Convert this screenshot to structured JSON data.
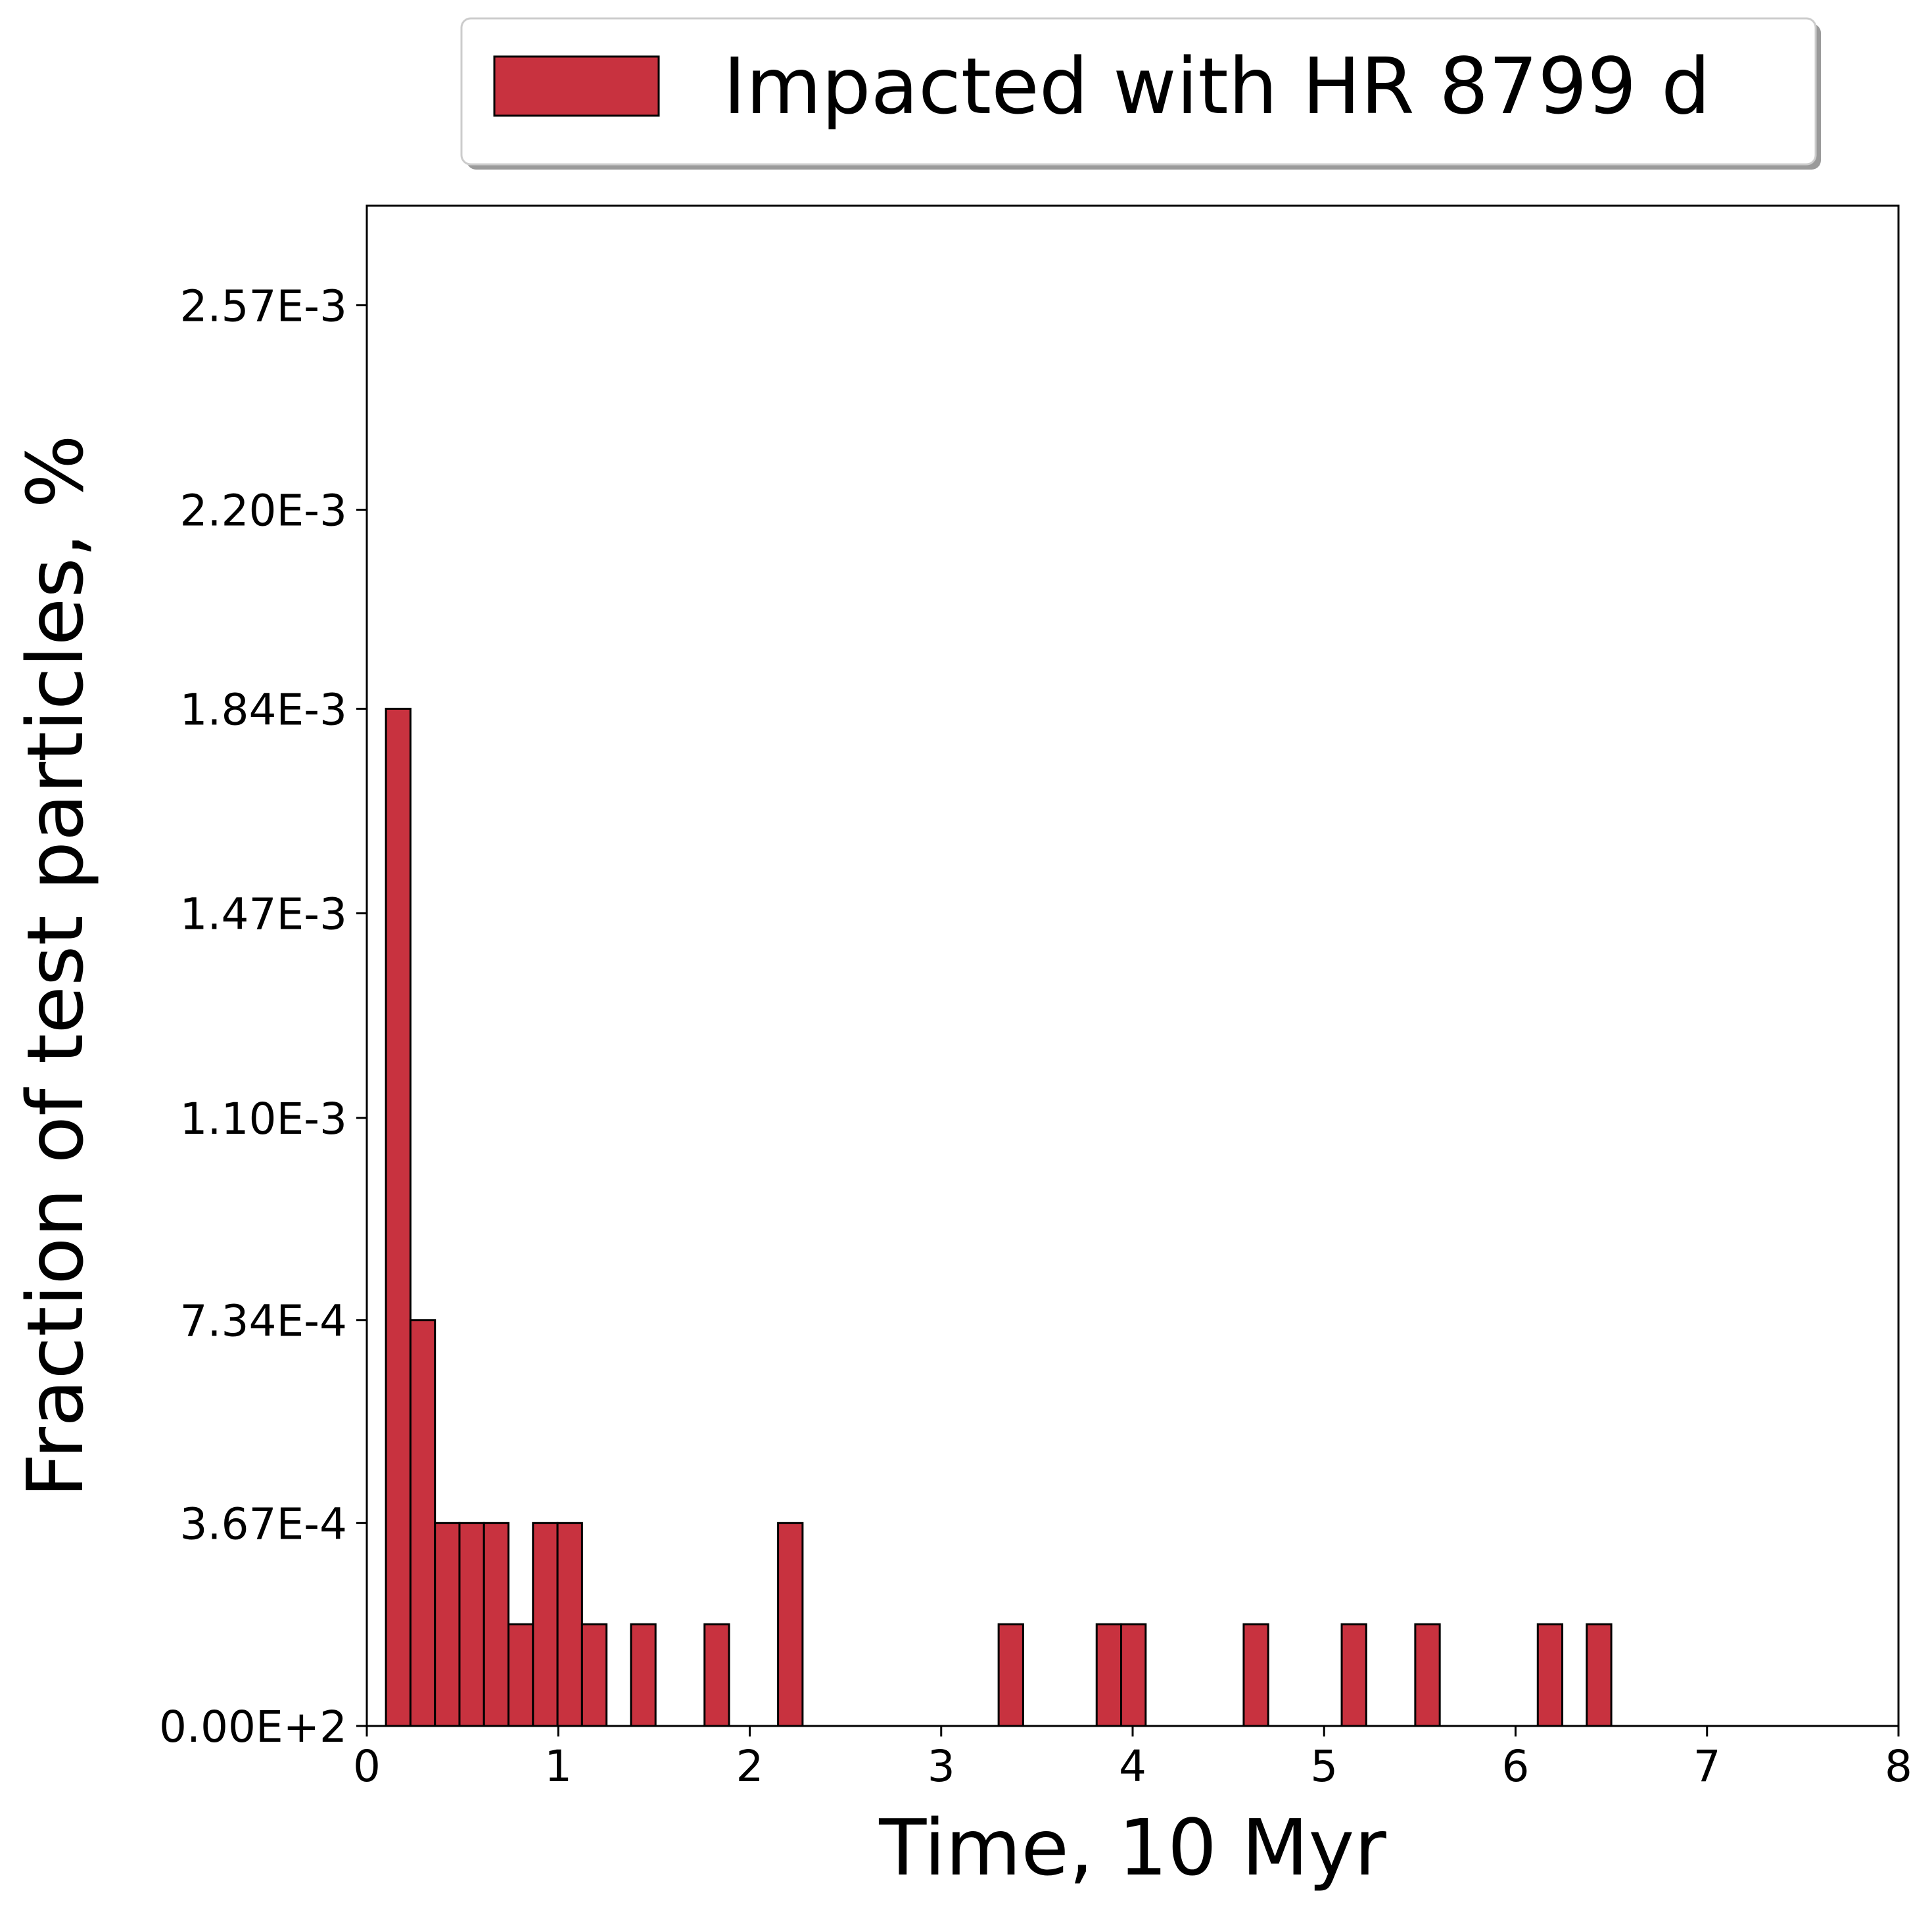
{
  "chart_data": {
    "type": "bar",
    "xlabel": "Time, 10 Myr",
    "ylabel": "Fraction of test particles, %",
    "xlim": [
      0,
      8
    ],
    "ylim": [
      0,
      0.00275
    ],
    "x_ticks": [
      0,
      1,
      2,
      3,
      4,
      5,
      6,
      7,
      8
    ],
    "x_tick_labels": [
      "0",
      "1",
      "2",
      "3",
      "4",
      "5",
      "6",
      "7",
      "8"
    ],
    "y_ticks": [
      0,
      0.000367,
      0.000734,
      0.0011,
      0.00147,
      0.00184,
      0.0022,
      0.00257
    ],
    "y_tick_labels": [
      "0.00E+2",
      "3.67E-4",
      "7.34E-4",
      "1.10E-3",
      "1.47E-3",
      "1.84E-3",
      "2.20E-3",
      "2.57E-3"
    ],
    "bin_width": 0.128,
    "legend": {
      "placement": "top-right, above plot",
      "entries": [
        "Impacted with HR 8799 d"
      ]
    },
    "bar_color": "#c8323f",
    "edge_color": "#000000",
    "grid": false,
    "series": [
      {
        "name": "Impacted with HR 8799 d",
        "bars": [
          {
            "x0": 0.1,
            "value": 0.00184
          },
          {
            "x0": 0.228,
            "value": 0.000734
          },
          {
            "x0": 0.356,
            "value": 0.000367
          },
          {
            "x0": 0.484,
            "value": 0.000367
          },
          {
            "x0": 0.612,
            "value": 0.000367
          },
          {
            "x0": 0.74,
            "value": 0.000184
          },
          {
            "x0": 0.868,
            "value": 0.000367
          },
          {
            "x0": 0.996,
            "value": 0.000367
          },
          {
            "x0": 1.124,
            "value": 0.000184
          },
          {
            "x0": 1.38,
            "value": 0.000184
          },
          {
            "x0": 1.764,
            "value": 0.000184
          },
          {
            "x0": 2.148,
            "value": 0.000367
          },
          {
            "x0": 3.3,
            "value": 0.000184
          },
          {
            "x0": 3.812,
            "value": 0.000184
          },
          {
            "x0": 3.94,
            "value": 0.000184
          },
          {
            "x0": 4.58,
            "value": 0.000184
          },
          {
            "x0": 5.092,
            "value": 0.000184
          },
          {
            "x0": 5.476,
            "value": 0.000184
          },
          {
            "x0": 6.116,
            "value": 0.000184
          },
          {
            "x0": 6.372,
            "value": 0.000184
          }
        ]
      }
    ]
  }
}
